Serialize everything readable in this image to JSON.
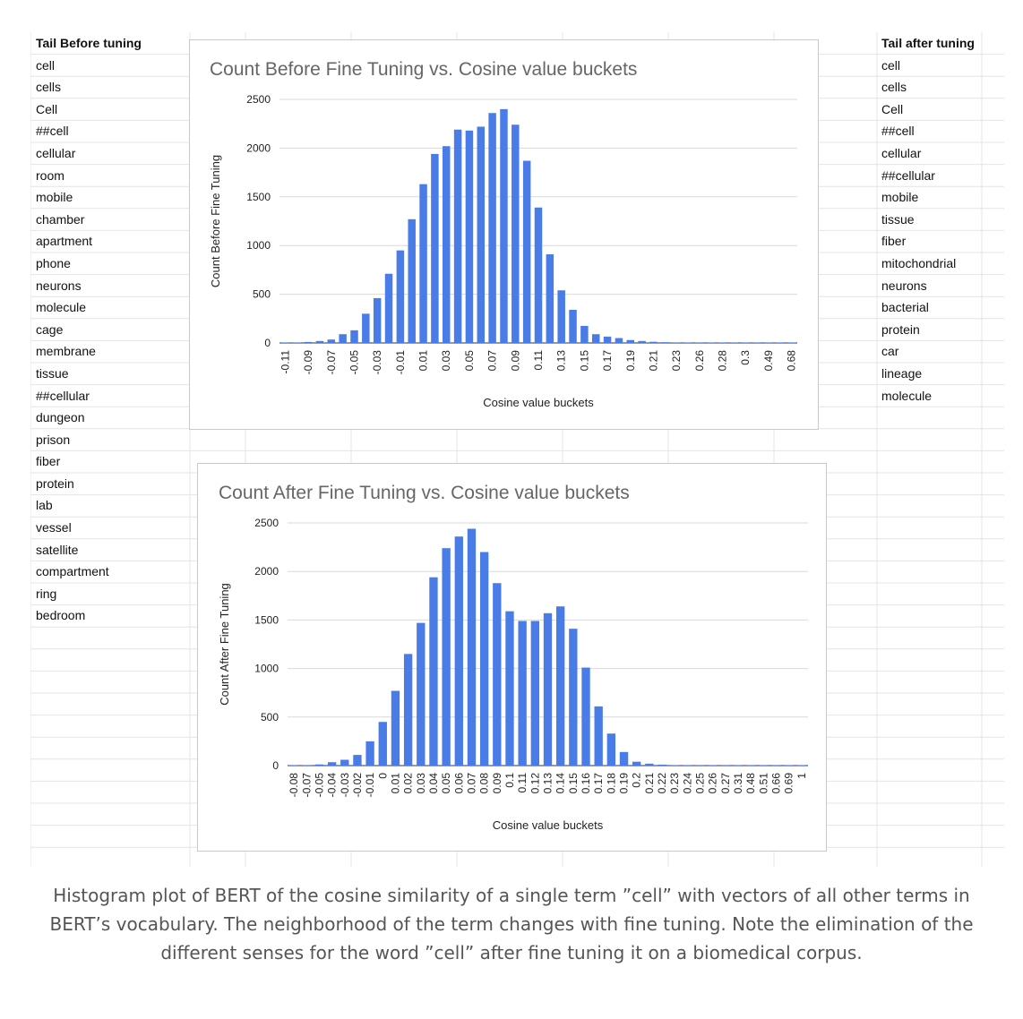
{
  "left_column": {
    "header": "Tail Before tuning",
    "items": [
      "cell",
      "cells",
      "Cell",
      "##cell",
      "cellular",
      "room",
      "mobile",
      "chamber",
      "apartment",
      "phone",
      "neurons",
      "molecule",
      "cage",
      "membrane",
      "tissue",
      "##cellular",
      "dungeon",
      "prison",
      "fiber",
      "protein",
      "lab",
      "vessel",
      "satellite",
      "compartment",
      "ring",
      "bedroom"
    ]
  },
  "right_column": {
    "header": "Tail after tuning",
    "items": [
      "cell",
      "cells",
      "Cell",
      "##cell",
      "cellular",
      "##cellular",
      "mobile",
      "tissue",
      "fiber",
      "mitochondrial",
      "neurons",
      "bacterial",
      "protein",
      "car",
      "lineage",
      "molecule"
    ]
  },
  "chart_data": [
    {
      "type": "bar",
      "title": "Count Before Fine Tuning vs. Cosine value buckets",
      "xlabel": "Cosine value buckets",
      "ylabel": "Count Before Fine Tuning",
      "ylim": [
        0,
        2500
      ],
      "yticks": [
        0,
        500,
        1000,
        1500,
        2000,
        2500
      ],
      "color": "#4a7ce8",
      "categories": [
        "-0.11",
        "-0.1",
        "-0.09",
        "-0.08",
        "-0.07",
        "-0.06",
        "-0.05",
        "-0.04",
        "-0.03",
        "-0.02",
        "-0.01",
        "0",
        "0.01",
        "0.02",
        "0.03",
        "0.04",
        "0.05",
        "0.06",
        "0.07",
        "0.08",
        "0.09",
        "0.1",
        "0.11",
        "0.12",
        "0.13",
        "0.14",
        "0.15",
        "0.16",
        "0.17",
        "0.18",
        "0.19",
        "0.2",
        "0.21",
        "0.22",
        "0.23",
        "0.24",
        "0.26",
        "0.27",
        "0.28",
        "0.29",
        "0.3",
        "0.31",
        "0.49",
        "0.5",
        "0.68"
      ],
      "tick_labels": [
        "-0.11",
        "",
        "-0.09",
        "",
        "-0.07",
        "",
        "-0.05",
        "",
        "-0.03",
        "",
        "-0.01",
        "",
        "0.01",
        "",
        "0.03",
        "",
        "0.05",
        "",
        "0.07",
        "",
        "0.09",
        "",
        "0.11",
        "",
        "0.13",
        "",
        "0.15",
        "",
        "0.17",
        "",
        "0.19",
        "",
        "0.21",
        "",
        "0.23",
        "",
        "0.26",
        "",
        "0.28",
        "",
        "0.3",
        "",
        "0.49",
        "",
        "0.68"
      ],
      "values": [
        2,
        5,
        10,
        20,
        35,
        90,
        130,
        300,
        460,
        710,
        950,
        1270,
        1630,
        1940,
        2020,
        2190,
        2180,
        2220,
        2360,
        2400,
        2240,
        1870,
        1390,
        910,
        540,
        340,
        175,
        90,
        65,
        50,
        30,
        20,
        12,
        8,
        5,
        3,
        2,
        2,
        1,
        1,
        1,
        1,
        1,
        1,
        1
      ]
    },
    {
      "type": "bar",
      "title": "Count After Fine Tuning vs. Cosine value buckets",
      "xlabel": "Cosine value buckets",
      "ylabel": "Count After Fine Tuning",
      "ylim": [
        0,
        2500
      ],
      "yticks": [
        0,
        500,
        1000,
        1500,
        2000,
        2500
      ],
      "color": "#4a7ce8",
      "categories": [
        "-0.08",
        "-0.07",
        "-0.05",
        "-0.04",
        "-0.03",
        "-0.02",
        "-0.01",
        "0",
        "0.01",
        "0.02",
        "0.03",
        "0.04",
        "0.05",
        "0.06",
        "0.07",
        "0.08",
        "0.09",
        "0.1",
        "0.11",
        "0.12",
        "0.13",
        "0.14",
        "0.15",
        "0.16",
        "0.17",
        "0.18",
        "0.19",
        "0.2",
        "0.21",
        "0.22",
        "0.23",
        "0.24",
        "0.25",
        "0.26",
        "0.27",
        "0.31",
        "0.48",
        "0.51",
        "0.66",
        "0.69",
        "1"
      ],
      "tick_labels": [
        "-0.08",
        "-0.07",
        "-0.05",
        "-0.04",
        "-0.03",
        "-0.02",
        "-0.01",
        "0",
        "0.01",
        "0.02",
        "0.03",
        "0.04",
        "0.05",
        "0.06",
        "0.07",
        "0.08",
        "0.09",
        "0.1",
        "0.11",
        "0.12",
        "0.13",
        "0.14",
        "0.15",
        "0.16",
        "0.17",
        "0.18",
        "0.19",
        "0.2",
        "0.21",
        "0.22",
        "0.23",
        "0.24",
        "0.25",
        "0.26",
        "0.27",
        "0.31",
        "0.48",
        "0.51",
        "0.66",
        "0.69",
        "1"
      ],
      "values": [
        2,
        5,
        12,
        35,
        60,
        110,
        250,
        450,
        770,
        1150,
        1470,
        1940,
        2240,
        2360,
        2440,
        2200,
        1880,
        1590,
        1490,
        1490,
        1570,
        1640,
        1410,
        1010,
        610,
        330,
        140,
        40,
        20,
        10,
        5,
        3,
        2,
        2,
        1,
        1,
        1,
        1,
        1,
        1,
        1
      ]
    }
  ],
  "caption": "Histogram plot of BERT of the cosine similarity of a single term ”cell” with vectors of all other terms in BERT’s vocabulary. The neighborhood of the term changes with fine tuning. Note the elimination of the different senses for the word ”cell” after fine tuning it on a biomedical corpus."
}
